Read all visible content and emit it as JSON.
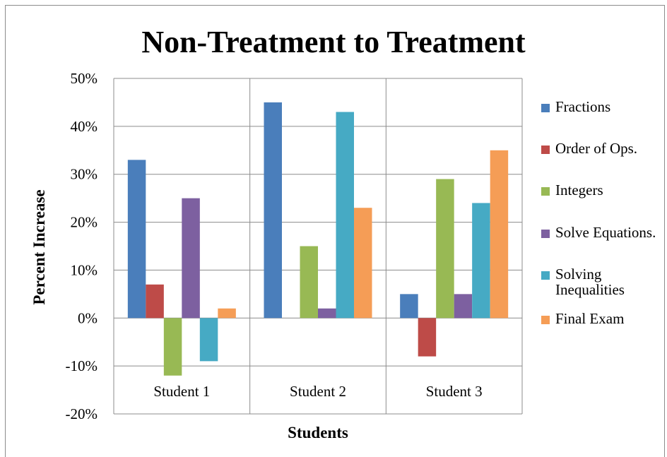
{
  "chart_data": {
    "type": "bar",
    "title": "Non-Treatment to Treatment",
    "xlabel": "Students",
    "ylabel": "Percent Increase",
    "categories": [
      "Student 1",
      "Student 2",
      "Student 3"
    ],
    "ylim": [
      -20,
      50
    ],
    "yticks": [
      -20,
      -10,
      0,
      10,
      20,
      30,
      40,
      50
    ],
    "ytick_labels": [
      "-20%",
      "-10%",
      "0%",
      "10%",
      "20%",
      "30%",
      "40%",
      "50%"
    ],
    "grid": true,
    "legend_position": "right",
    "series": [
      {
        "name": "Fractions",
        "color": "#4a7ebb",
        "values": [
          33,
          45,
          5
        ]
      },
      {
        "name": "Order of Ops.",
        "color": "#be4b48",
        "values": [
          7,
          0,
          -8
        ]
      },
      {
        "name": "Integers",
        "color": "#98b954",
        "values": [
          -12,
          15,
          29
        ]
      },
      {
        "name": "Solve Equations.",
        "color": "#7d60a0",
        "values": [
          25,
          2,
          5
        ]
      },
      {
        "name": "Solving Inequalities",
        "color": "#46aac4",
        "values": [
          -9,
          43,
          24
        ]
      },
      {
        "name": "Final Exam",
        "color": "#f59d56",
        "values": [
          2,
          23,
          35
        ]
      }
    ]
  }
}
